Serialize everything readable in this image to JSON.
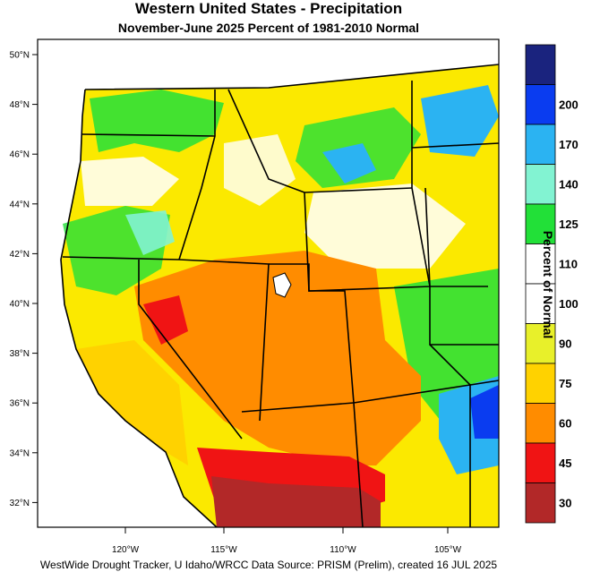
{
  "title": "Western United States - Precipitation",
  "subtitle": "November-June 2025  Percent of 1981-2010 Normal",
  "colorbar": {
    "title": "Percent of Normal",
    "bins": [
      {
        "label": "",
        "color": "#1a237e"
      },
      {
        "label": "200",
        "color": "#0a3cf0"
      },
      {
        "label": "170",
        "color": "#2bb3f2"
      },
      {
        "label": "140",
        "color": "#82f3d2"
      },
      {
        "label": "125",
        "color": "#22e038"
      },
      {
        "label": "110",
        "color": "#ffffff"
      },
      {
        "label": "100",
        "color": "#ffffff"
      },
      {
        "label": "90",
        "color": "#e8f02a"
      },
      {
        "label": "75",
        "color": "#ffd200"
      },
      {
        "label": "60",
        "color": "#ff8c00"
      },
      {
        "label": "45",
        "color": "#f01414"
      },
      {
        "label": "30",
        "color": "#b22828"
      }
    ]
  },
  "latitudes": [
    "50°N",
    "48°N",
    "46°N",
    "44°N",
    "42°N",
    "40°N",
    "38°N",
    "36°N",
    "34°N",
    "32°N"
  ],
  "longitudes": [
    "120°W",
    "115°W",
    "110°W",
    "105°W"
  ],
  "footer": "WestWide Drought Tracker, U Idaho/WRCC Data Source: PRISM (Prelim), created 16 JUL 2025",
  "colors": {
    "ocean": "#ffffff",
    "border": "#000000"
  }
}
